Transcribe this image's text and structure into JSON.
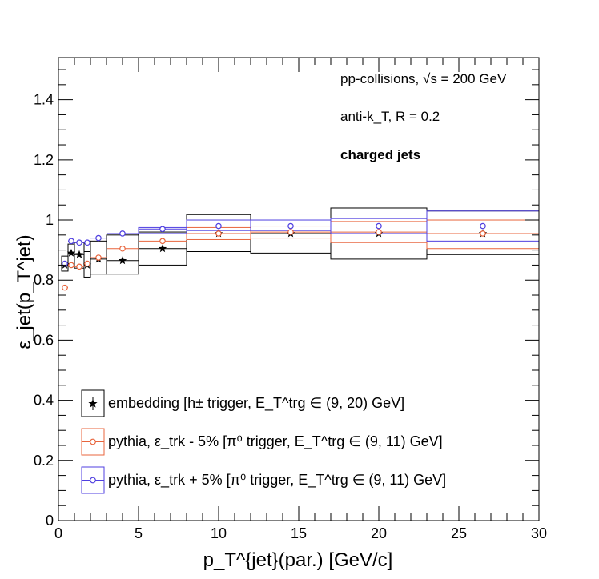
{
  "chart_data": {
    "type": "scatter",
    "xlabel": "p_T^{jet}(par.) [GeV/c]",
    "ylabel": "ε_jet(p_T^jet)",
    "xlim": [
      0,
      30
    ],
    "ylim": [
      0,
      1.54
    ],
    "x_ticks": [
      "0",
      "5",
      "10",
      "15",
      "20",
      "25",
      "30"
    ],
    "y_ticks": [
      "0",
      "0.2",
      "0.4",
      "0.6",
      "0.8",
      "1",
      "1.2",
      "1.4"
    ],
    "annotations": {
      "line1": "pp-collisions, √s = 200 GeV",
      "line2": "anti-k_T, R = 0.2",
      "line3": "charged jets"
    },
    "legend_placement": "bottom-left",
    "series": [
      {
        "name": "embedding [h± trigger, E_T^trg ∈ (9, 20) GeV]",
        "color": "#000000",
        "marker": "star",
        "points": [
          {
            "x": 0.4,
            "y": 0.85,
            "xlo": 0.2,
            "xhi": 0.6,
            "ylo": 0.83,
            "yhi": 0.88
          },
          {
            "x": 0.8,
            "y": 0.89,
            "xlo": 0.6,
            "xhi": 1.0,
            "ylo": 0.855,
            "yhi": 0.92
          },
          {
            "x": 1.3,
            "y": 0.885,
            "xlo": 1.0,
            "xhi": 1.6,
            "ylo": 0.84,
            "yhi": 0.925
          },
          {
            "x": 1.8,
            "y": 0.85,
            "xlo": 1.6,
            "xhi": 2.0,
            "ylo": 0.81,
            "yhi": 0.895
          },
          {
            "x": 2.5,
            "y": 0.87,
            "xlo": 2.0,
            "xhi": 3.0,
            "ylo": 0.82,
            "yhi": 0.93
          },
          {
            "x": 4.0,
            "y": 0.865,
            "xlo": 3.0,
            "xhi": 5.0,
            "ylo": 0.82,
            "yhi": 0.95
          },
          {
            "x": 6.5,
            "y": 0.905,
            "xlo": 5.0,
            "xhi": 8.0,
            "ylo": 0.85,
            "yhi": 0.96
          },
          {
            "x": 10.0,
            "y": 0.955,
            "xlo": 8.0,
            "xhi": 12.0,
            "ylo": 0.895,
            "yhi": 1.018
          },
          {
            "x": 14.5,
            "y": 0.955,
            "xlo": 12.0,
            "xhi": 17.0,
            "ylo": 0.89,
            "yhi": 1.02
          },
          {
            "x": 20.0,
            "y": 0.955,
            "xlo": 17.0,
            "xhi": 23.0,
            "ylo": 0.87,
            "yhi": 1.04
          },
          {
            "x": 26.5,
            "y": 0.955,
            "xlo": 23.0,
            "xhi": 30.0,
            "ylo": 0.885,
            "yhi": 1.03
          }
        ]
      },
      {
        "name": "pythia, ε_trk - 5% [π⁰ trigger, E_T^trg ∈ (9, 11) GeV]",
        "color": "#e8643c",
        "marker": "open-circle",
        "points": [
          {
            "x": 0.4,
            "y": 0.775,
            "xlo": 0.2,
            "xhi": 0.6
          },
          {
            "x": 0.8,
            "y": 0.85,
            "xlo": 0.6,
            "xhi": 1.0
          },
          {
            "x": 1.3,
            "y": 0.845,
            "xlo": 1.0,
            "xhi": 1.6
          },
          {
            "x": 1.8,
            "y": 0.855,
            "xlo": 1.6,
            "xhi": 2.0
          },
          {
            "x": 2.5,
            "y": 0.875,
            "xlo": 2.0,
            "xhi": 3.0
          },
          {
            "x": 4.0,
            "y": 0.905,
            "xlo": 3.0,
            "xhi": 5.0
          },
          {
            "x": 6.5,
            "y": 0.93,
            "xlo": 5.0,
            "xhi": 8.0
          },
          {
            "x": 10.0,
            "y": 0.955,
            "xlo": 8.0,
            "xhi": 12.0,
            "ylo": 0.935,
            "yhi": 0.975
          },
          {
            "x": 14.5,
            "y": 0.96,
            "xlo": 12.0,
            "xhi": 17.0,
            "ylo": 0.94,
            "yhi": 0.98
          },
          {
            "x": 20.0,
            "y": 0.96,
            "xlo": 17.0,
            "xhi": 23.0,
            "ylo": 0.925,
            "yhi": 0.995
          },
          {
            "x": 26.5,
            "y": 0.955,
            "xlo": 23.0,
            "xhi": 30.0,
            "ylo": 0.905,
            "yhi": 1.0
          }
        ]
      },
      {
        "name": "pythia, ε_trk + 5% [π⁰ trigger, E_T^trg ∈ (9, 11) GeV]",
        "color": "#4f3fe0",
        "marker": "open-circle",
        "points": [
          {
            "x": 0.4,
            "y": 0.855,
            "xlo": 0.2,
            "xhi": 0.6
          },
          {
            "x": 0.8,
            "y": 0.93,
            "xlo": 0.6,
            "xhi": 1.0
          },
          {
            "x": 1.3,
            "y": 0.925,
            "xlo": 1.0,
            "xhi": 1.6
          },
          {
            "x": 1.8,
            "y": 0.925,
            "xlo": 1.6,
            "xhi": 2.0
          },
          {
            "x": 2.5,
            "y": 0.94,
            "xlo": 2.0,
            "xhi": 3.0
          },
          {
            "x": 4.0,
            "y": 0.955,
            "xlo": 3.0,
            "xhi": 5.0
          },
          {
            "x": 6.5,
            "y": 0.97,
            "xlo": 5.0,
            "xhi": 8.0,
            "ylo": 0.955,
            "yhi": 0.975
          },
          {
            "x": 10.0,
            "y": 0.98,
            "xlo": 8.0,
            "xhi": 12.0,
            "ylo": 0.965,
            "yhi": 1.0
          },
          {
            "x": 14.5,
            "y": 0.98,
            "xlo": 12.0,
            "xhi": 17.0,
            "ylo": 0.965,
            "yhi": 1.0
          },
          {
            "x": 20.0,
            "y": 0.98,
            "xlo": 17.0,
            "xhi": 23.0,
            "ylo": 0.955,
            "yhi": 1.005
          },
          {
            "x": 26.5,
            "y": 0.98,
            "xlo": 23.0,
            "xhi": 30.0,
            "ylo": 0.93,
            "yhi": 1.03
          }
        ]
      }
    ]
  }
}
